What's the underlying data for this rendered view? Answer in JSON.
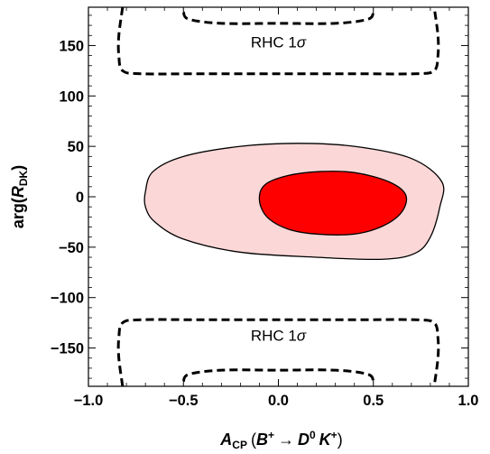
{
  "chart_data": {
    "type": "contour",
    "title": "",
    "xlabel": {
      "main": "A",
      "sub": "CP",
      "open": "(",
      "b": "B",
      "b_sup": "+",
      "arrow": "→",
      "d": "D",
      "d_sup": "0",
      "k": "K",
      "k_sup": "+",
      "close": ")"
    },
    "ylabel": {
      "prefix": "arg(",
      "r": "R",
      "sub": "DK",
      "close": ")"
    },
    "xlim": [
      -1.0,
      1.0
    ],
    "ylim": [
      -188,
      188
    ],
    "grid": false,
    "legend": "none",
    "x_ticks": [
      {
        "value": -1.0,
        "label": "−1.0"
      },
      {
        "value": -0.5,
        "label": "−0.5"
      },
      {
        "value": 0.0,
        "label": "0.0"
      },
      {
        "value": 0.5,
        "label": "0.5"
      },
      {
        "value": 1.0,
        "label": "1.0"
      }
    ],
    "y_ticks": [
      {
        "value": 150,
        "label": "150"
      },
      {
        "value": 100,
        "label": "100"
      },
      {
        "value": 50,
        "label": "50"
      },
      {
        "value": 0,
        "label": "0"
      },
      {
        "value": -50,
        "label": "−50"
      },
      {
        "value": -100,
        "label": "−100"
      },
      {
        "value": -150,
        "label": "−150"
      }
    ],
    "regions": [
      {
        "level": "outer",
        "fill": "#fcd7d7",
        "stroke": "#000000",
        "points": [
          [
            -0.7,
            5
          ],
          [
            -0.66,
            25
          ],
          [
            -0.5,
            40
          ],
          [
            -0.2,
            50
          ],
          [
            0.1,
            53
          ],
          [
            0.4,
            50
          ],
          [
            0.7,
            38
          ],
          [
            0.86,
            15
          ],
          [
            0.85,
            -10
          ],
          [
            0.8,
            -40
          ],
          [
            0.72,
            -56
          ],
          [
            0.55,
            -62
          ],
          [
            0.2,
            -60
          ],
          [
            -0.2,
            -55
          ],
          [
            -0.5,
            -42
          ],
          [
            -0.65,
            -25
          ],
          [
            -0.7,
            -10
          ]
        ]
      },
      {
        "level": "inner",
        "fill": "#ff0000",
        "stroke": "#000000",
        "points": [
          [
            -0.1,
            -3
          ],
          [
            -0.07,
            12
          ],
          [
            0.05,
            21
          ],
          [
            0.22,
            25
          ],
          [
            0.4,
            24
          ],
          [
            0.58,
            15
          ],
          [
            0.67,
            2
          ],
          [
            0.65,
            -15
          ],
          [
            0.55,
            -29
          ],
          [
            0.4,
            -37
          ],
          [
            0.2,
            -37
          ],
          [
            0.05,
            -32
          ],
          [
            -0.06,
            -20
          ]
        ]
      }
    ],
    "dashed_contours": [
      {
        "points": [
          [
            -0.82,
            188
          ],
          [
            -0.84,
            160
          ],
          [
            -0.84,
            140
          ],
          [
            -0.82,
            125
          ],
          [
            -0.72,
            122
          ],
          [
            -0.4,
            122
          ],
          [
            0.0,
            122
          ],
          [
            0.4,
            122
          ],
          [
            0.72,
            122
          ],
          [
            0.82,
            125
          ],
          [
            0.84,
            140
          ],
          [
            0.84,
            160
          ],
          [
            0.82,
            188
          ]
        ]
      },
      {
        "points": [
          [
            -0.5,
            183
          ],
          [
            -0.47,
            176
          ],
          [
            -0.3,
            172
          ],
          [
            0.0,
            172
          ],
          [
            0.3,
            172
          ],
          [
            0.47,
            176
          ],
          [
            0.5,
            183
          ]
        ]
      },
      {
        "points": [
          [
            -0.82,
            -188
          ],
          [
            -0.84,
            -160
          ],
          [
            -0.84,
            -140
          ],
          [
            -0.82,
            -125
          ],
          [
            -0.72,
            -122
          ],
          [
            -0.4,
            -122
          ],
          [
            0.0,
            -122
          ],
          [
            0.4,
            -122
          ],
          [
            0.72,
            -122
          ],
          [
            0.82,
            -125
          ],
          [
            0.84,
            -140
          ],
          [
            0.84,
            -160
          ],
          [
            0.82,
            -188
          ]
        ]
      },
      {
        "points": [
          [
            -0.5,
            -183
          ],
          [
            -0.47,
            -176
          ],
          [
            -0.3,
            -172
          ],
          [
            0.0,
            -172
          ],
          [
            0.3,
            -172
          ],
          [
            0.47,
            -176
          ],
          [
            0.5,
            -183
          ]
        ]
      }
    ],
    "annotations": [
      {
        "text": "RHC 1",
        "symbol": "σ",
        "x": 0.0,
        "y": 148
      },
      {
        "text": "RHC 1",
        "symbol": "σ",
        "x": 0.0,
        "y": -143
      }
    ]
  }
}
